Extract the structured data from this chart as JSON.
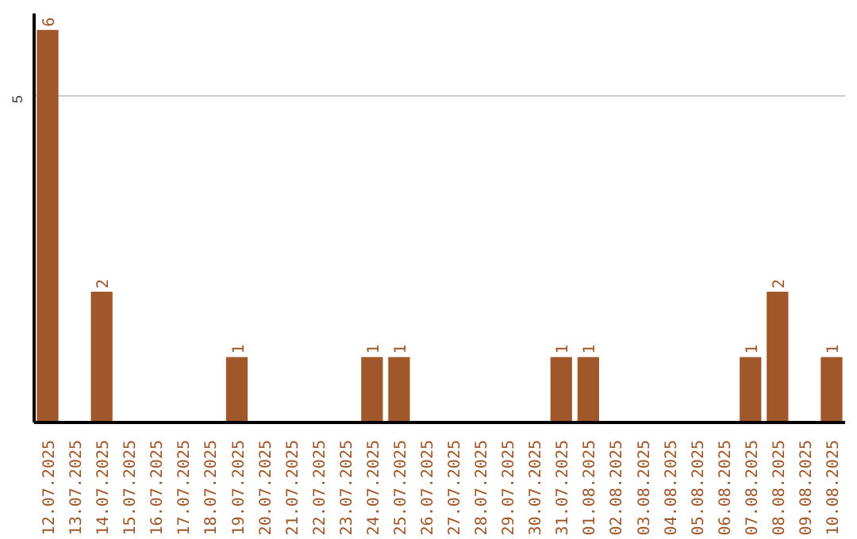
{
  "chart_data": {
    "type": "bar",
    "categories": [
      "12.07.2025",
      "13.07.2025",
      "14.07.2025",
      "15.07.2025",
      "16.07.2025",
      "17.07.2025",
      "18.07.2025",
      "19.07.2025",
      "20.07.2025",
      "21.07.2025",
      "22.07.2025",
      "23.07.2025",
      "24.07.2025",
      "25.07.2025",
      "26.07.2025",
      "27.07.2025",
      "28.07.2025",
      "29.07.2025",
      "30.07.2025",
      "31.07.2025",
      "01.08.2025",
      "02.08.2025",
      "03.08.2025",
      "04.08.2025",
      "05.08.2025",
      "06.08.2025",
      "07.08.2025",
      "08.08.2025",
      "09.08.2025",
      "10.08.2025"
    ],
    "values": [
      6,
      0,
      2,
      0,
      0,
      0,
      0,
      1,
      0,
      0,
      0,
      0,
      1,
      1,
      0,
      0,
      0,
      0,
      0,
      1,
      1,
      0,
      0,
      0,
      0,
      0,
      1,
      2,
      0,
      1
    ],
    "value_labels": [
      "6",
      null,
      "2",
      null,
      null,
      null,
      null,
      "1",
      null,
      null,
      null,
      null,
      "1",
      "1",
      null,
      null,
      null,
      null,
      null,
      "1",
      "1",
      null,
      null,
      null,
      null,
      null,
      "1",
      "2",
      null,
      "1"
    ],
    "color": "#a0582a",
    "ylim": [
      0,
      6.25
    ],
    "yticks": [
      5
    ],
    "grid": "y"
  }
}
